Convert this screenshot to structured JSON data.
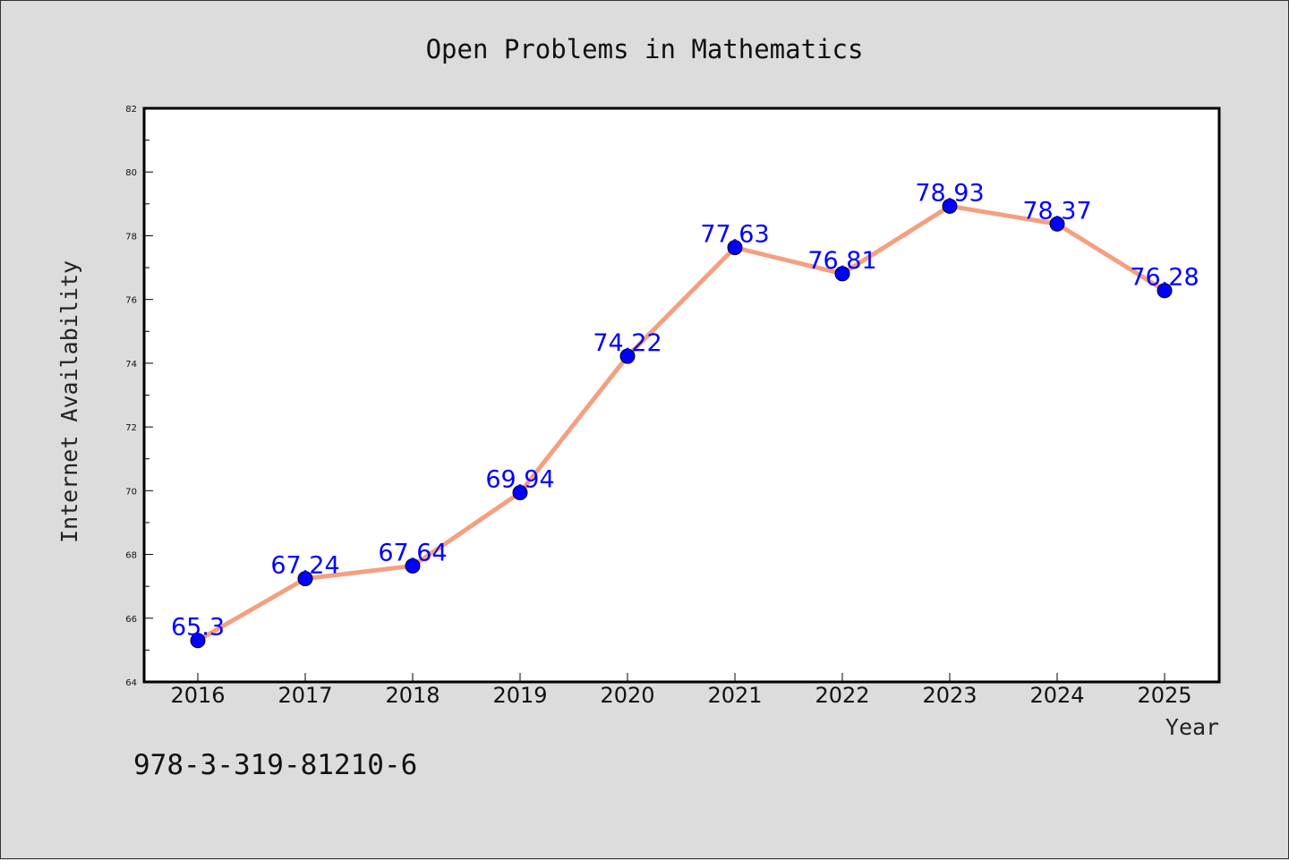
{
  "chart_data": {
    "type": "line",
    "title": "Open Problems in Mathematics",
    "xlabel": "Year",
    "ylabel": "Internet Availability",
    "categories": [
      "2016",
      "2017",
      "2018",
      "2019",
      "2020",
      "2021",
      "2022",
      "2023",
      "2024",
      "2025"
    ],
    "series": [
      {
        "values": [
          65.3,
          67.24,
          67.64,
          69.94,
          74.22,
          77.63,
          76.81,
          78.93,
          78.37,
          76.28
        ],
        "data_labels": [
          "65.3",
          "67.24",
          "67.64",
          "69.94",
          "74.22",
          "77.63",
          "76.81",
          "78.93",
          "78.37",
          "76.28"
        ],
        "line_color": "#f4a080",
        "marker_color": "#0000ff"
      }
    ],
    "ylim": [
      64,
      82
    ],
    "yticks": [
      "64",
      "66",
      "68",
      "70",
      "72",
      "74",
      "76",
      "78",
      "80",
      "82"
    ],
    "grid": false,
    "legend": "none"
  },
  "footer": {
    "isbn": "978-3-319-81210-6"
  },
  "colors": {
    "background": "#dcdcdc",
    "plot_background": "#ffffff",
    "label_color": "#0000ff"
  }
}
